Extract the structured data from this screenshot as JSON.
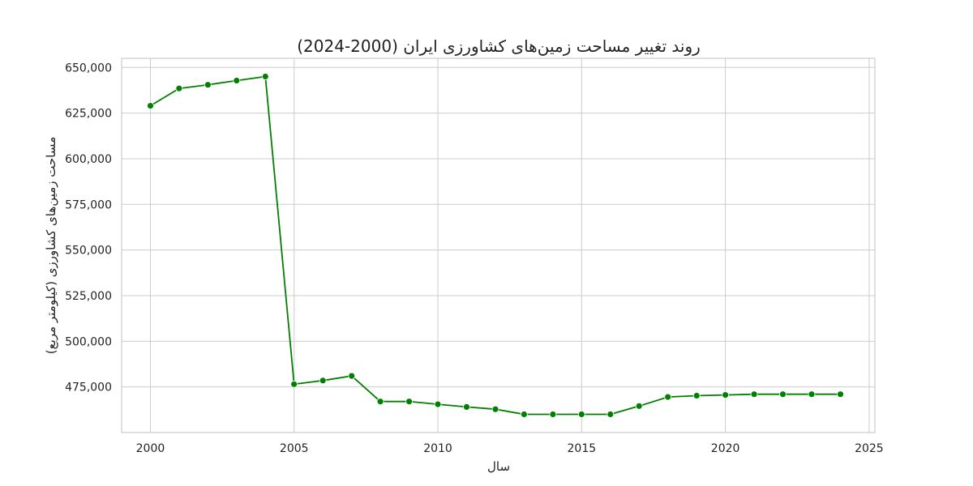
{
  "chart_data": {
    "type": "line",
    "title": "روند تغییر مساحت زمین‌های کشاورزی ایران (2000-2024)",
    "xlabel": "سال",
    "ylabel": "مساحت زمین‌های کشاورزی (کیلومتر مربع)",
    "xlim": [
      1999,
      2025.2
    ],
    "ylim": [
      450000,
      655000
    ],
    "xticks": [
      2000,
      2005,
      2010,
      2015,
      2020,
      2025
    ],
    "yticks": [
      475000,
      500000,
      525000,
      550000,
      575000,
      600000,
      625000,
      650000
    ],
    "xtick_labels": [
      "2000",
      "2005",
      "2010",
      "2015",
      "2020",
      "2025"
    ],
    "ytick_labels": [
      "475,000",
      "500,000",
      "525,000",
      "550,000",
      "575,000",
      "600,000",
      "625,000",
      "650,000"
    ],
    "grid": true,
    "color": "#008000",
    "x": [
      2000,
      2001,
      2002,
      2003,
      2004,
      2005,
      2006,
      2007,
      2008,
      2009,
      2010,
      2011,
      2012,
      2013,
      2014,
      2015,
      2016,
      2017,
      2018,
      2019,
      2020,
      2021,
      2022,
      2023,
      2024
    ],
    "series": [
      {
        "values": [
          629000,
          638500,
          640500,
          642800,
          645000,
          476500,
          478500,
          481000,
          467000,
          467000,
          465500,
          464000,
          462800,
          460000,
          460000,
          460000,
          460000,
          464500,
          469500,
          470200,
          470600,
          471000,
          471000,
          471000,
          471000
        ]
      }
    ]
  }
}
